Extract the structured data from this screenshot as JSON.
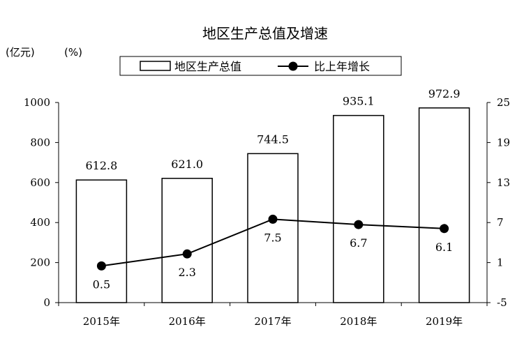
{
  "chart_data": {
    "type": "bar",
    "title": "地区生产总值及增速",
    "categories": [
      "2015年",
      "2016年",
      "2017年",
      "2018年",
      "2019年"
    ],
    "series": [
      {
        "name": "地区生产总值",
        "type": "bar",
        "axis": "left",
        "values": [
          612.8,
          621.0,
          744.5,
          935.1,
          972.9
        ]
      },
      {
        "name": "比上年增长",
        "type": "line",
        "axis": "right",
        "values": [
          0.5,
          2.3,
          7.5,
          6.7,
          6.1
        ]
      }
    ],
    "y_left": {
      "unit": "(亿元)",
      "range": [
        0,
        1000
      ],
      "ticks": [
        "0",
        "200",
        "400",
        "600",
        "800",
        "1000"
      ]
    },
    "y_right": {
      "unit": "(%)",
      "range": [
        -5,
        25
      ],
      "ticks": [
        "-5",
        "1",
        "7",
        "13",
        "19",
        "25"
      ]
    },
    "bar_labels": [
      "612.8",
      "621.0",
      "744.5",
      "935.1",
      "972.9"
    ],
    "line_labels": [
      "0.5",
      "2.3",
      "7.5",
      "6.7",
      "6.1"
    ],
    "legend_position": "top",
    "grid": false
  }
}
